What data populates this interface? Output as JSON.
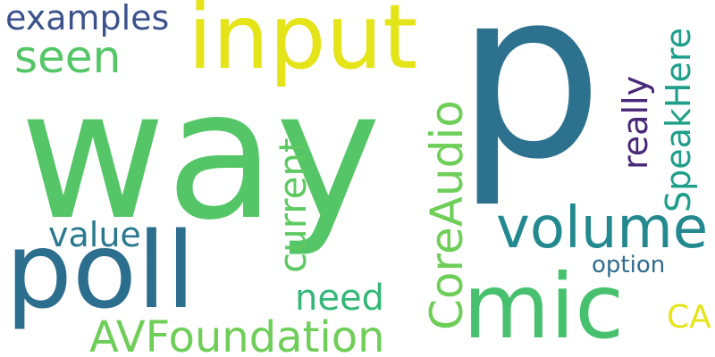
{
  "words": {
    "p": "p",
    "way": "way",
    "input": "input",
    "poll": "poll",
    "mic": "mic",
    "volume": "volume",
    "CoreAudio": "CoreAudio",
    "AVFoundation": "AVFoundation",
    "SpeakHere": "SpeakHere",
    "examples": "examples",
    "seen": "seen",
    "really": "really",
    "current": "current",
    "value": "value",
    "need": "need",
    "option": "option",
    "CA": "CA"
  },
  "colors": {
    "background": "#ffffff",
    "dark_purple": "#482878",
    "indigo": "#3e4a89",
    "blue": "#31688e",
    "teal": "#26828e",
    "teal_green": "#1f9e89",
    "green": "#35b779",
    "light_green": "#55c667",
    "yellow_green": "#6ece58",
    "yellow": "#e5e419"
  }
}
